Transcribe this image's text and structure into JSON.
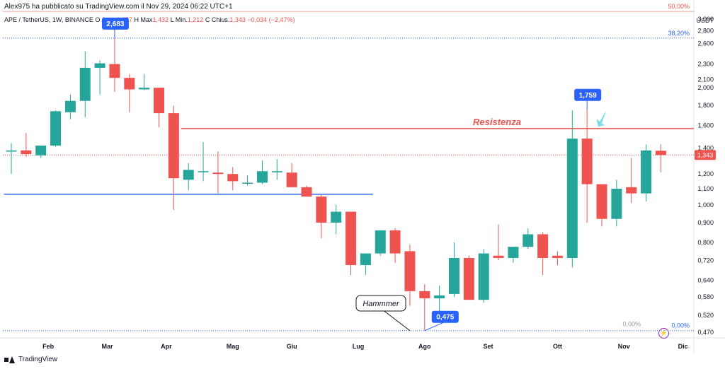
{
  "header": {
    "publisher": "Alex975 ha pubblicato su TradingView.com il Nov 29, 2024 06:22 UTC+1"
  },
  "legend": {
    "symbol": "APE / TetherUS, 1W, BINANCE",
    "open_label": "O",
    "open_text": "Aper.",
    "open_value": "1,377",
    "high_label": "H",
    "high_text": "Max",
    "high_value": "1,432",
    "low_label": "L",
    "low_text": "Min.",
    "low_value": "1,212",
    "close_label": "C",
    "close_text": "Chius.",
    "close_value": "1,343",
    "change_value": "−0,034 (−2,47%)"
  },
  "footer": {
    "brand": "TradingView"
  },
  "colors": {
    "up": "#26a69a",
    "down": "#ef5350",
    "support": "#2962ff",
    "fib": "#2962ff",
    "resistance": "#ef5350"
  },
  "chart_data": {
    "type": "candlestick",
    "y_scale": "log",
    "ylim": [
      0.455,
      3.25
    ],
    "y_ticks": [
      "3,000",
      "2,800",
      "2,600",
      "2,300",
      "2,100",
      "2,000",
      "1,800",
      "1,600",
      "1,400",
      "1,200",
      "1,100",
      "1,000",
      "0,900",
      "0,800",
      "0,720",
      "0,640",
      "0,580",
      "0,520",
      "0,470"
    ],
    "y_tick_values": [
      3.0,
      2.8,
      2.6,
      2.3,
      2.1,
      2.0,
      1.8,
      1.6,
      1.4,
      1.2,
      1.1,
      1.0,
      0.9,
      0.8,
      0.72,
      0.64,
      0.58,
      0.52,
      0.47
    ],
    "currency_label": "USDT",
    "x_ticks": [
      "Feb",
      "Mar",
      "Apr",
      "Mag",
      "Giu",
      "Lug",
      "Ago",
      "Set",
      "Ott",
      "Nov",
      "Dic"
    ],
    "x_tick_week_index": [
      2.5,
      6.5,
      10.5,
      15,
      19,
      23.5,
      28,
      32.3,
      37,
      41.5,
      45.5
    ],
    "candles": [
      {
        "o": 1.37,
        "h": 1.44,
        "l": 1.2,
        "c": 1.38
      },
      {
        "o": 1.38,
        "h": 1.53,
        "l": 1.33,
        "c": 1.35
      },
      {
        "o": 1.34,
        "h": 1.41,
        "l": 1.32,
        "c": 1.42
      },
      {
        "o": 1.42,
        "h": 1.75,
        "l": 1.41,
        "c": 1.74
      },
      {
        "o": 1.73,
        "h": 1.92,
        "l": 1.66,
        "c": 1.85
      },
      {
        "o": 1.85,
        "h": 2.48,
        "l": 1.68,
        "c": 2.25
      },
      {
        "o": 2.25,
        "h": 2.35,
        "l": 1.92,
        "c": 2.31
      },
      {
        "o": 2.3,
        "h": 2.683,
        "l": 1.95,
        "c": 2.12
      },
      {
        "o": 2.12,
        "h": 2.17,
        "l": 1.73,
        "c": 1.98
      },
      {
        "o": 1.98,
        "h": 2.17,
        "l": 1.97,
        "c": 2.0
      },
      {
        "o": 2.0,
        "h": 2.0,
        "l": 1.58,
        "c": 1.72
      },
      {
        "o": 1.72,
        "h": 1.8,
        "l": 0.97,
        "c": 1.17
      },
      {
        "o": 1.16,
        "h": 1.28,
        "l": 1.09,
        "c": 1.23
      },
      {
        "o": 1.22,
        "h": 1.45,
        "l": 1.15,
        "c": 1.22
      },
      {
        "o": 1.21,
        "h": 1.37,
        "l": 1.07,
        "c": 1.2
      },
      {
        "o": 1.2,
        "h": 1.25,
        "l": 1.09,
        "c": 1.15
      },
      {
        "o": 1.14,
        "h": 1.19,
        "l": 1.12,
        "c": 1.14
      },
      {
        "o": 1.14,
        "h": 1.3,
        "l": 1.13,
        "c": 1.22
      },
      {
        "o": 1.22,
        "h": 1.31,
        "l": 1.16,
        "c": 1.22
      },
      {
        "o": 1.21,
        "h": 1.28,
        "l": 1.13,
        "c": 1.11
      },
      {
        "o": 1.11,
        "h": 1.12,
        "l": 1.05,
        "c": 1.05
      },
      {
        "o": 1.05,
        "h": 1.06,
        "l": 0.82,
        "c": 0.9
      },
      {
        "o": 0.9,
        "h": 1.0,
        "l": 0.84,
        "c": 0.96
      },
      {
        "o": 0.96,
        "h": 0.96,
        "l": 0.66,
        "c": 0.7
      },
      {
        "o": 0.7,
        "h": 0.75,
        "l": 0.66,
        "c": 0.75
      },
      {
        "o": 0.75,
        "h": 0.86,
        "l": 0.74,
        "c": 0.86
      },
      {
        "o": 0.86,
        "h": 0.87,
        "l": 0.71,
        "c": 0.75
      },
      {
        "o": 0.76,
        "h": 0.79,
        "l": 0.55,
        "c": 0.6
      },
      {
        "o": 0.6,
        "h": 0.625,
        "l": 0.475,
        "c": 0.575
      },
      {
        "o": 0.575,
        "h": 0.62,
        "l": 0.51,
        "c": 0.585
      },
      {
        "o": 0.59,
        "h": 0.8,
        "l": 0.58,
        "c": 0.73
      },
      {
        "o": 0.73,
        "h": 0.74,
        "l": 0.57,
        "c": 0.57
      },
      {
        "o": 0.57,
        "h": 0.77,
        "l": 0.56,
        "c": 0.75
      },
      {
        "o": 0.74,
        "h": 0.89,
        "l": 0.72,
        "c": 0.73
      },
      {
        "o": 0.73,
        "h": 0.78,
        "l": 0.71,
        "c": 0.78
      },
      {
        "o": 0.78,
        "h": 0.87,
        "l": 0.77,
        "c": 0.84
      },
      {
        "o": 0.84,
        "h": 0.85,
        "l": 0.66,
        "c": 0.73
      },
      {
        "o": 0.74,
        "h": 0.76,
        "l": 0.7,
        "c": 0.73
      },
      {
        "o": 0.73,
        "h": 1.75,
        "l": 0.69,
        "c": 1.48
      },
      {
        "o": 1.48,
        "h": 1.759,
        "l": 0.9,
        "c": 1.13
      },
      {
        "o": 1.13,
        "h": 1.13,
        "l": 0.88,
        "c": 0.92
      },
      {
        "o": 0.92,
        "h": 1.16,
        "l": 0.88,
        "c": 1.1
      },
      {
        "o": 1.11,
        "h": 1.32,
        "l": 1.01,
        "c": 1.07
      },
      {
        "o": 1.07,
        "h": 1.43,
        "l": 1.02,
        "c": 1.38
      },
      {
        "o": 1.377,
        "h": 1.432,
        "l": 1.212,
        "c": 1.343
      }
    ],
    "fib_levels": [
      {
        "label": "50,00%",
        "value": 3.14,
        "color": "#ef5350",
        "dotted": false
      },
      {
        "label": "38,20%",
        "value": 2.683,
        "color": "#2962ff",
        "dotted": true
      },
      {
        "label": "0,00%",
        "value": 0.475,
        "color": "#2962ff",
        "dotted": true
      }
    ],
    "extra_fib_label": "0,00%",
    "support_line": {
      "value": 1.065,
      "from_week": -0.5,
      "to_week": 24.5
    },
    "resistance_line": {
      "value": 1.57,
      "from_week": 11.5,
      "to_week": 46.6,
      "label": "Resistenza"
    },
    "current_price": {
      "value": 1.343,
      "label": "1,343"
    },
    "callouts": [
      {
        "label": "2,683",
        "week": 7,
        "value": 2.683,
        "position": "above"
      },
      {
        "label": "1,759",
        "week": 39,
        "value": 1.759,
        "position": "above"
      },
      {
        "label": "0,475",
        "week": 28,
        "value": 0.475,
        "position": "right"
      }
    ],
    "annotation": {
      "label": "Hammmer",
      "week": 27,
      "value": 0.475
    }
  }
}
